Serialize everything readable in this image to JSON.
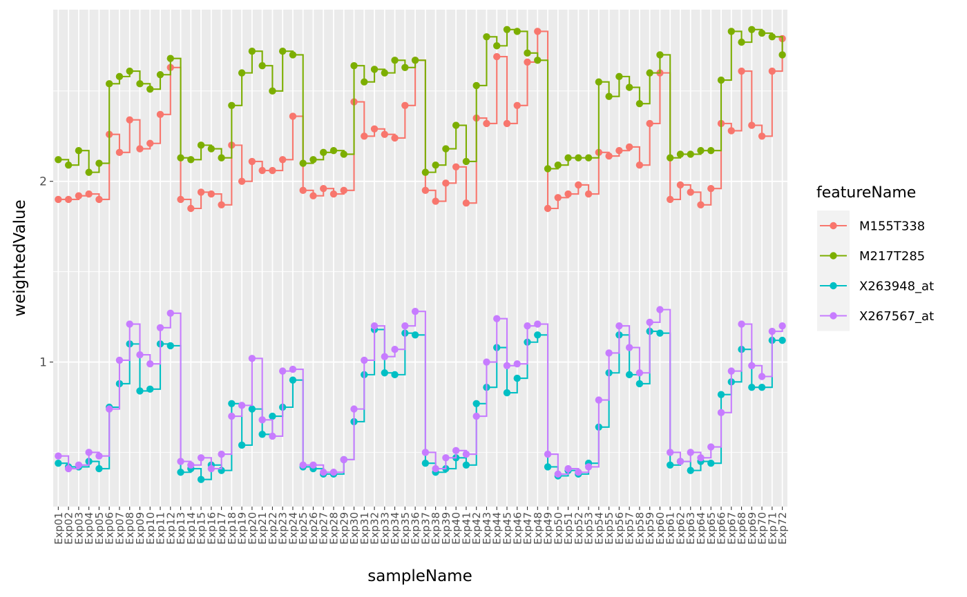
{
  "chart_data": {
    "type": "line",
    "line_style": "step",
    "points": true,
    "xlabel": "sampleName",
    "ylabel": "weightedValue",
    "ylim": [
      0.2,
      2.95
    ],
    "y_ticks": [
      1,
      2
    ],
    "grid": true,
    "legend": {
      "title": "featureName",
      "position": "right"
    },
    "categories": [
      "Exp01",
      "Exp02",
      "Exp03",
      "Exp04",
      "Exp05",
      "Exp06",
      "Exp07",
      "Exp08",
      "Exp09",
      "Exp10",
      "Exp11",
      "Exp12",
      "Exp13",
      "Exp14",
      "Exp15",
      "Exp16",
      "Exp17",
      "Exp18",
      "Exp19",
      "Exp20",
      "Exp21",
      "Exp22",
      "Exp23",
      "Exp24",
      "Exp25",
      "Exp26",
      "Exp27",
      "Exp28",
      "Exp29",
      "Exp30",
      "Exp31",
      "Exp32",
      "Exp33",
      "Exp34",
      "Exp35",
      "Exp36",
      "Exp37",
      "Exp38",
      "Exp39",
      "Exp40",
      "Exp41",
      "Exp42",
      "Exp43",
      "Exp44",
      "Exp45",
      "Exp46",
      "Exp47",
      "Exp48",
      "Exp49",
      "Exp50",
      "Exp51",
      "Exp52",
      "Exp53",
      "Exp54",
      "Exp55",
      "Exp56",
      "Exp57",
      "Exp58",
      "Exp59",
      "Exp60",
      "Exp61",
      "Exp62",
      "Exp63",
      "Exp64",
      "Exp65",
      "Exp66",
      "Exp67",
      "Exp68",
      "Exp69",
      "Exp70",
      "Exp71",
      "Exp72"
    ],
    "series": [
      {
        "name": "M155T338",
        "color": "#F8766D",
        "values": [
          1.9,
          1.9,
          1.92,
          1.93,
          1.9,
          2.26,
          2.16,
          2.34,
          2.18,
          2.21,
          2.37,
          2.63,
          1.9,
          1.85,
          1.94,
          1.93,
          1.87,
          2.2,
          2.0,
          2.11,
          2.06,
          2.06,
          2.12,
          2.36,
          1.95,
          1.92,
          1.96,
          1.93,
          1.95,
          2.44,
          2.25,
          2.29,
          2.26,
          2.24,
          2.42,
          2.67,
          1.95,
          1.89,
          1.99,
          2.08,
          1.88,
          2.35,
          2.32,
          2.69,
          2.32,
          2.42,
          2.66,
          2.83,
          1.85,
          1.91,
          1.93,
          1.98,
          1.93,
          2.16,
          2.14,
          2.17,
          2.19,
          2.09,
          2.32,
          2.6,
          1.9,
          1.98,
          1.94,
          1.87,
          1.96,
          2.32,
          2.28,
          2.61,
          2.31,
          2.25,
          2.61,
          2.79
        ]
      },
      {
        "name": "M217T285",
        "color": "#7CAE00",
        "values": [
          2.12,
          2.09,
          2.17,
          2.05,
          2.1,
          2.54,
          2.58,
          2.61,
          2.54,
          2.51,
          2.59,
          2.68,
          2.13,
          2.12,
          2.2,
          2.18,
          2.13,
          2.42,
          2.6,
          2.72,
          2.64,
          2.5,
          2.72,
          2.7,
          2.1,
          2.12,
          2.16,
          2.17,
          2.15,
          2.64,
          2.55,
          2.62,
          2.6,
          2.67,
          2.63,
          2.67,
          2.05,
          2.09,
          2.18,
          2.31,
          2.11,
          2.53,
          2.8,
          2.75,
          2.84,
          2.83,
          2.71,
          2.67,
          2.07,
          2.09,
          2.13,
          2.13,
          2.13,
          2.55,
          2.47,
          2.58,
          2.52,
          2.43,
          2.6,
          2.7,
          2.13,
          2.15,
          2.15,
          2.17,
          2.17,
          2.56,
          2.83,
          2.77,
          2.84,
          2.82,
          2.8,
          2.7
        ]
      },
      {
        "name": "X263948_at",
        "color": "#00BFC4",
        "values": [
          0.44,
          0.42,
          0.42,
          0.45,
          0.41,
          0.75,
          0.88,
          1.1,
          0.84,
          0.85,
          1.1,
          1.09,
          0.39,
          0.41,
          0.35,
          0.43,
          0.4,
          0.77,
          0.54,
          0.74,
          0.6,
          0.7,
          0.75,
          0.9,
          0.42,
          0.41,
          0.38,
          0.38,
          0.46,
          0.67,
          0.93,
          1.18,
          0.94,
          0.93,
          1.16,
          1.15,
          0.44,
          0.39,
          0.41,
          0.47,
          0.43,
          0.77,
          0.86,
          1.08,
          0.83,
          0.91,
          1.11,
          1.15,
          0.42,
          0.37,
          0.4,
          0.38,
          0.44,
          0.64,
          0.94,
          1.15,
          0.93,
          0.88,
          1.17,
          1.16,
          0.43,
          0.45,
          0.4,
          0.45,
          0.44,
          0.82,
          0.89,
          1.07,
          0.86,
          0.86,
          1.12,
          1.12
        ]
      },
      {
        "name": "X267567_at",
        "color": "#C77CFF",
        "values": [
          0.48,
          0.41,
          0.43,
          0.5,
          0.48,
          0.74,
          1.01,
          1.21,
          1.04,
          0.99,
          1.19,
          1.27,
          0.45,
          0.43,
          0.47,
          0.41,
          0.49,
          0.7,
          0.76,
          1.02,
          0.68,
          0.59,
          0.95,
          0.96,
          0.43,
          0.43,
          0.39,
          0.39,
          0.46,
          0.74,
          1.01,
          1.2,
          1.03,
          1.07,
          1.2,
          1.28,
          0.5,
          0.41,
          0.47,
          0.51,
          0.49,
          0.7,
          1.0,
          1.24,
          0.98,
          0.99,
          1.2,
          1.21,
          0.49,
          0.38,
          0.41,
          0.39,
          0.42,
          0.79,
          1.05,
          1.2,
          1.08,
          0.94,
          1.22,
          1.29,
          0.5,
          0.45,
          0.5,
          0.47,
          0.53,
          0.72,
          0.95,
          1.21,
          0.98,
          0.92,
          1.17,
          1.2
        ]
      }
    ]
  }
}
